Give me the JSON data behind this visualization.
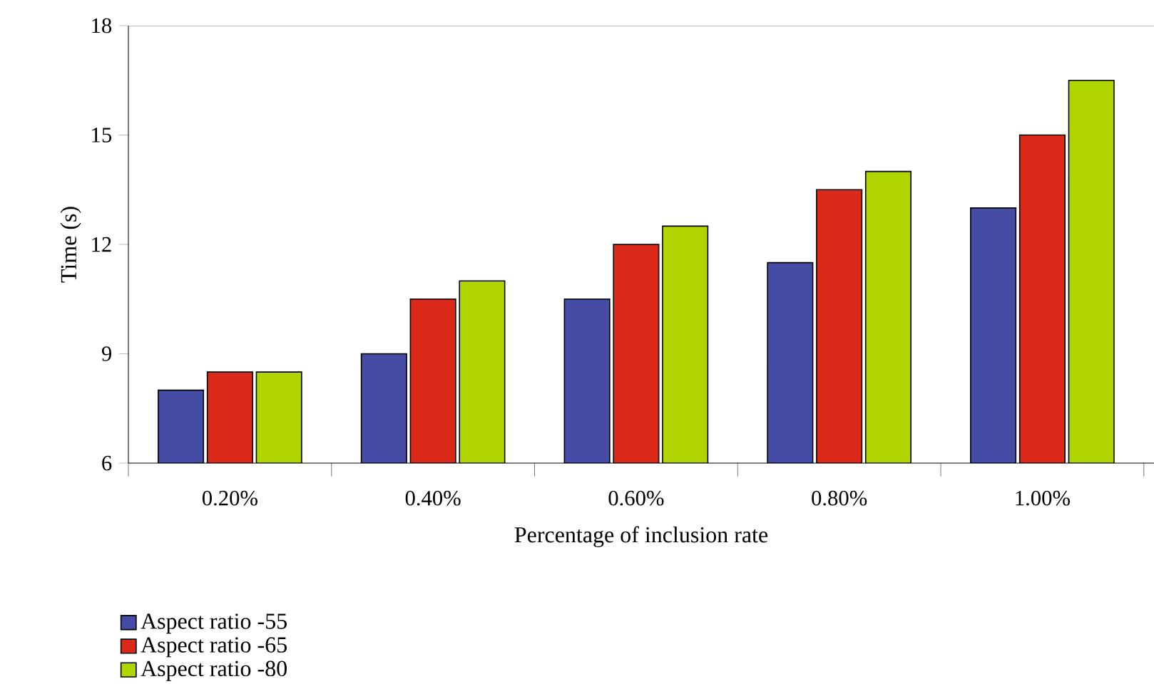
{
  "chart_data": {
    "type": "bar",
    "xlabel": "Percentage of inclusion rate",
    "ylabel": "Time (s)",
    "categories": [
      "0.20%",
      "0.40%",
      "0.60%",
      "0.80%",
      "1.00%"
    ],
    "series": [
      {
        "name": "Aspect ratio -55",
        "color": "#444ca6",
        "values": [
          8,
          9,
          10.5,
          11.5,
          13
        ]
      },
      {
        "name": "Aspect ratio -65",
        "color": "#dc2a1a",
        "values": [
          8.5,
          10.5,
          12,
          13.5,
          15
        ]
      },
      {
        "name": "Aspect ratio -80",
        "color": "#b0d400",
        "values": [
          8.5,
          11,
          12.5,
          14,
          16.5
        ]
      }
    ],
    "ylim": [
      6,
      18
    ],
    "yticks": [
      6,
      9,
      12,
      15,
      18
    ],
    "grid": false,
    "legend": "bottom left"
  }
}
